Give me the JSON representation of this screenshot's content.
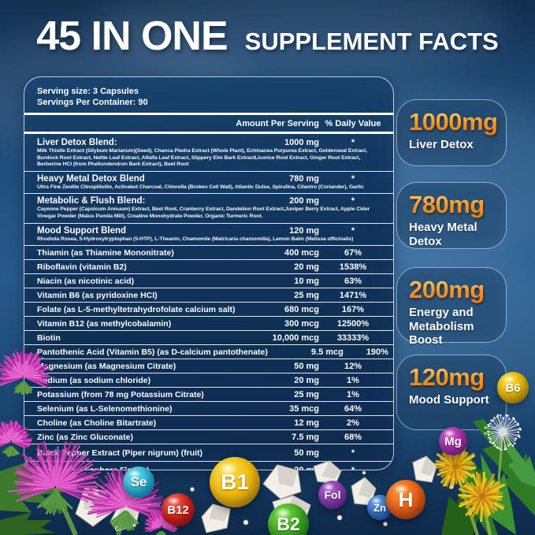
{
  "title": {
    "main": "45 IN ONE",
    "sub": "SUPPLEMENT FACTS"
  },
  "facts": {
    "serving_size": "Serving size: 3 Capsules",
    "servings_per_container": "Servings Per Container: 90",
    "columns": {
      "amount": "Amount Per Serving",
      "daily_value": "% Daily Value"
    },
    "rows": [
      {
        "type": "blend",
        "name": "Liver  Detox Blend:",
        "amount": "1000 mg",
        "dv": "*",
        "desc": "Milk Thistle Extract (Silybum Marianum)(Seed), Chanca Piedra Extract (Whole Plant), Echinacea Purpurea Extract, Goldenseal Extract, Burdock Root Extract, Nettle Leaf Extract, Alfalfa Leaf Extract, Slippery Elm Bark ExtractLicorice Root Extract, Ginger Root Extract, Berberine HCI (from Phellondendron Bark Extract), Beet Root"
      },
      {
        "type": "blend",
        "name": "Heavy Metal Detox Blend",
        "amount": "780 mg",
        "dv": "*",
        "desc": "Ultra Fine Zeolite Clinoptilolite, Activated Charcoal, Chlorella (Broken Cell Wall), Atlantic Dulse, Spirulina, Cilantro (Coriander), Garlic"
      },
      {
        "type": "blend",
        "name": "Metabolic & Flush Blend:",
        "amount": "200 mg",
        "dv": "*",
        "desc": "Cayenne Pepper (Capsicum Annuum) Extract, Beet Root, Cranberry Extract, Dandelion Root Extract,Juniper Berry Extract, Apple Cider Vinegar Powder (Malus Pumila Mill), Creatine Monohydrate Powder, Organic Turmeric Root."
      },
      {
        "type": "blend",
        "name": "Mood Support Blend",
        "amount": "120 mg",
        "dv": "*",
        "desc": "Rhodiola Rosea, 5-Hydroxytryptophan (5-HTP), L-Theanin, Chamomile (Matricaria chamomilla), Lemon Balm (Melissa officinalis)"
      },
      {
        "type": "simple",
        "name": "Thiamin (as Thiamine Mononitrate)",
        "amount": "400 mcg",
        "dv": "67%"
      },
      {
        "type": "simple",
        "name": "Riboflavin (vitamin B2)",
        "amount": "20 mg",
        "dv": "1538%"
      },
      {
        "type": "simple",
        "name": "Niacin (as nicotinic acid)",
        "amount": "10 mg",
        "dv": "63%"
      },
      {
        "type": "simple",
        "name": "Vitamin B6 (as pyridoxine HCI)",
        "amount": "25 mg",
        "dv": "1471%"
      },
      {
        "type": "simple",
        "name": "Folate (as L-5-methyltetrahydrofolate calcium salt)",
        "amount": "680 mcg",
        "dv": "167%"
      },
      {
        "type": "simple",
        "name": "Vitamin B12  (as methylcobalamin)",
        "amount": "300 mcg",
        "dv": "12500%"
      },
      {
        "type": "simple",
        "name": "Biotin",
        "amount": "10,000 mcg",
        "dv": "33333%"
      },
      {
        "type": "simple",
        "name": "Pantothenic Acid (Vitamin B5) (as D-calcium pantothenate)",
        "amount": "9.5 mcg",
        "dv": "190%"
      },
      {
        "type": "simple",
        "name": "Magnesium (as Magnesium Citrate)",
        "amount": "50 mg",
        "dv": "12%"
      },
      {
        "type": "simple",
        "name": "Sodium (as sodium chloride)",
        "amount": "20 mg",
        "dv": "1%"
      },
      {
        "type": "simple",
        "name": "Potassium (from 78 mg Potassium Citrate)",
        "amount": "25 mg",
        "dv": "1%"
      },
      {
        "type": "simple",
        "name": "Selenium (as L-Selenomethionine)",
        "amount": "35 mcg",
        "dv": "64%"
      },
      {
        "type": "simple",
        "name": "Choline (as Choline Bitartrate)",
        "amount": "12 mg",
        "dv": "2%"
      },
      {
        "type": "simple",
        "name": "Zinc (as Zinc Gluconate)",
        "amount": "7.5 mg",
        "dv": "68%"
      },
      {
        "type": "simple",
        "tall": true,
        "name": "Black Pepper Extract (Piper nigrum) (fruit)",
        "amount": "50 mg",
        "dv": "*"
      },
      {
        "type": "simple",
        "tall": true,
        "name": "Rutin (from Sophora Flower)",
        "amount": "20 mg",
        "dv": "*"
      }
    ]
  },
  "highlights": [
    {
      "value": "1000mg",
      "label": "Liver Detox"
    },
    {
      "value": "780mg",
      "label": "Heavy Metal Detox"
    },
    {
      "value": "200mg",
      "label": "Energy and Metabolism Boost"
    },
    {
      "value": "120mg",
      "label": "Mood Support"
    }
  ],
  "minerals": [
    {
      "id": "se",
      "label": "Se",
      "colors": {
        "light": "#7ae0f0",
        "mid": "#29b6d4",
        "dark": "#0d7d95"
      }
    },
    {
      "id": "b12",
      "label": "B12",
      "colors": {
        "light": "#f2655a",
        "mid": "#d42318",
        "dark": "#8f0f08"
      }
    },
    {
      "id": "b1",
      "label": "B1",
      "colors": {
        "light": "#ffe14d",
        "mid": "#f0b90b",
        "dark": "#b07f00"
      }
    },
    {
      "id": "b2",
      "label": "B2",
      "colors": {
        "light": "#7fdc4a",
        "mid": "#3aa81e",
        "dark": "#1d7a0e"
      }
    },
    {
      "id": "fol",
      "label": "Fol",
      "colors": {
        "light": "#b46ad4",
        "mid": "#8a3cae",
        "dark": "#5c2378"
      }
    },
    {
      "id": "zn",
      "label": "Zn",
      "colors": {
        "light": "#6fa8e8",
        "mid": "#3a78c9",
        "dark": "#1f4f93"
      }
    },
    {
      "id": "h",
      "label": "H",
      "colors": {
        "light": "#ff9840",
        "mid": "#e85f12",
        "dark": "#a33d05"
      }
    },
    {
      "id": "mg",
      "label": "Mg",
      "colors": {
        "light": "#d65fd0",
        "mid": "#a832a8",
        "dark": "#701d70"
      }
    },
    {
      "id": "b6",
      "label": "B6",
      "colors": {
        "light": "#ffe24f",
        "mid": "#e6b800",
        "dark": "#a67f00"
      }
    }
  ],
  "accent_colors": {
    "orange": "#f79420",
    "panel_blue": "#10335a",
    "line_white": "#ffffff"
  }
}
